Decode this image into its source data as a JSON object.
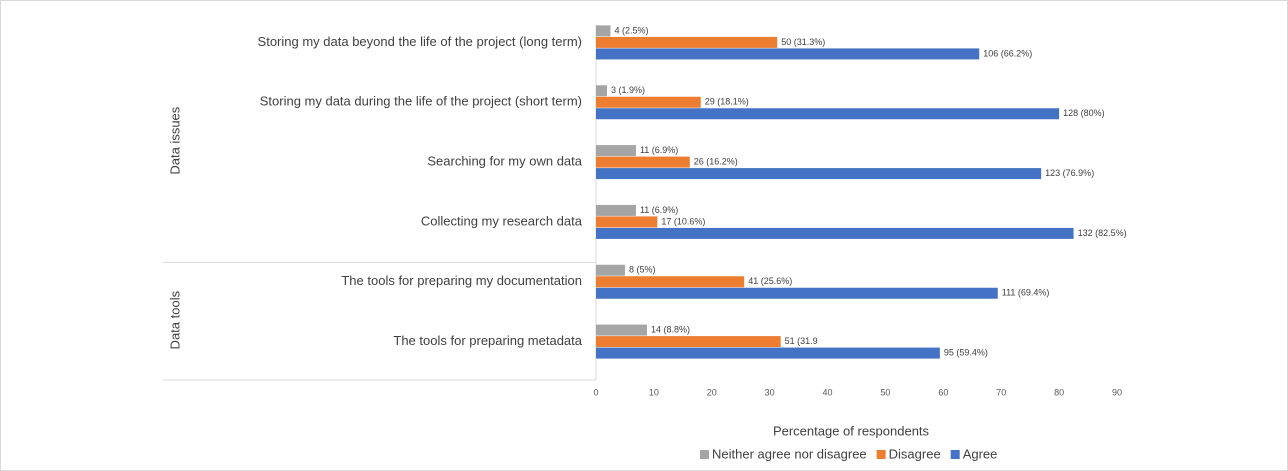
{
  "chart_data": {
    "type": "bar",
    "orientation": "horizontal",
    "xlabel": "Percentage of respondents",
    "categories": [
      "Storing my data beyond the life of the project (long term)",
      "Storing my data during the life of the project (short term)",
      "Searching for my own data",
      "Collecting my research data",
      "The tools for preparing my documentation",
      "The tools for preparing metadata"
    ],
    "groups": [
      {
        "label": "Data issues",
        "count": 4
      },
      {
        "label": "Data tools",
        "count": 2
      }
    ],
    "series": [
      {
        "name": "Neither agree nor disagree",
        "color": "#a5a5a5",
        "values": [
          2.5,
          1.9,
          6.9,
          6.9,
          5,
          8.8
        ],
        "value_labels": [
          "4 (2.5%)",
          "3 (1.9%)",
          "11 (6.9%)",
          "11 (6.9%)",
          "8 (5%)",
          "14 (8.8%)"
        ]
      },
      {
        "name": "Disagree",
        "color": "#ed7d31",
        "values": [
          31.3,
          18.1,
          16.2,
          10.6,
          25.6,
          31.9
        ],
        "value_labels": [
          "50 (31.3%)",
          "29 (18.1%)",
          "26 (16.2%)",
          "17 (10.6%)",
          "41 (25.6%)",
          "51 (31.9"
        ]
      },
      {
        "name": "Agree",
        "color": "#4472c4",
        "values": [
          66.2,
          80,
          76.9,
          82.5,
          69.4,
          59.4
        ],
        "value_labels": [
          "106 (66.2%)",
          "128 (80%)",
          "123 (76.9%)",
          "132 (82.5%)",
          "111 (69.4%)",
          "95 (59.4%)"
        ]
      }
    ],
    "xlim": [
      0,
      90
    ],
    "xticks": [
      0,
      10,
      20,
      30,
      40,
      50,
      60,
      70,
      80,
      90
    ],
    "legend": "bottom"
  }
}
